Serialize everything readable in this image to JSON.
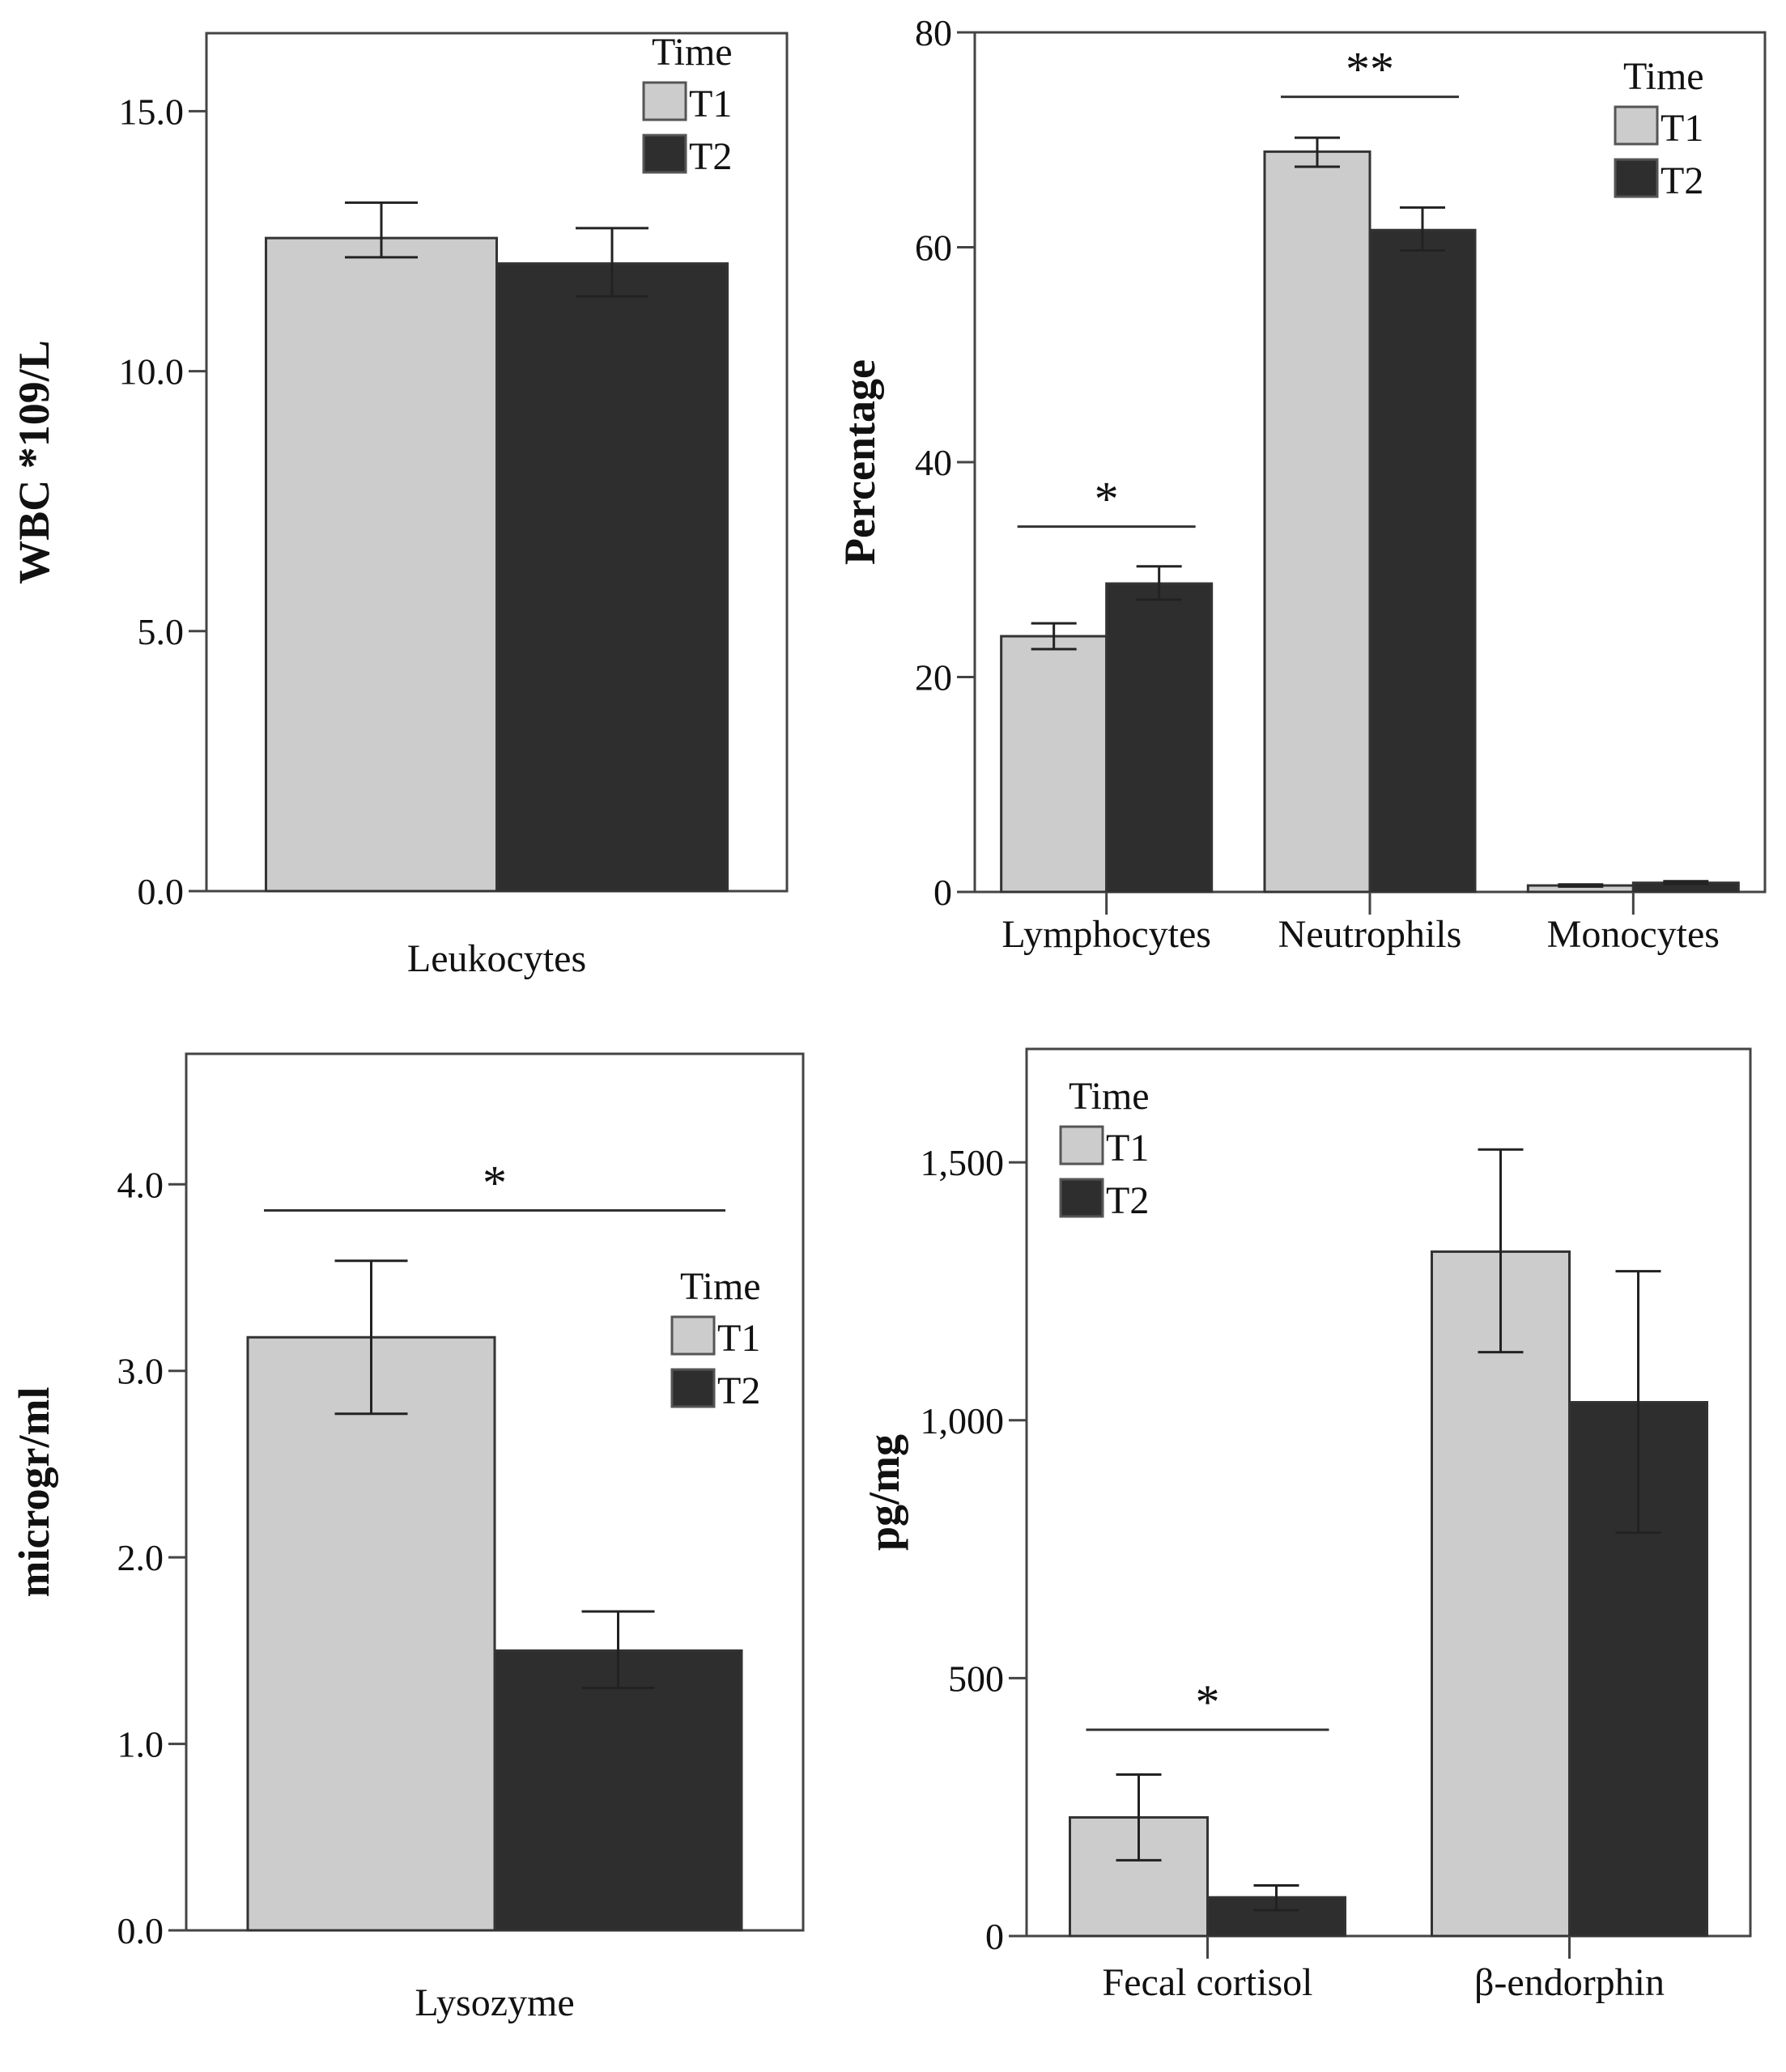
{
  "colors": {
    "T1": "#cccccc",
    "T2": "#2e2e2e",
    "axis": "#444444"
  },
  "legend": {
    "title": "Time",
    "items": [
      "T1",
      "T2"
    ]
  },
  "chart_data": [
    {
      "type": "bar",
      "title": "",
      "xlabel": "Leukocytes",
      "ylabel": "WBC *109/L",
      "ylim": [
        0,
        16.5
      ],
      "yticks": [
        0,
        5,
        10,
        15
      ],
      "ytick_labels": [
        "0.0",
        "5.0",
        "10.0",
        "15.0"
      ],
      "categories": [
        ""
      ],
      "series": [
        {
          "name": "T1",
          "values": [
            12.56
          ],
          "err_low": [
            12.19
          ],
          "err_high": [
            13.24
          ]
        },
        {
          "name": "T2",
          "values": [
            12.07
          ],
          "err_low": [
            11.44
          ],
          "err_high": [
            12.75
          ]
        }
      ],
      "significance": [],
      "legend_position": "top-right"
    },
    {
      "type": "bar",
      "title": "",
      "xlabel": "",
      "ylabel": "Percentage",
      "ylim": [
        0,
        80
      ],
      "yticks": [
        0,
        20,
        40,
        60,
        80
      ],
      "ytick_labels": [
        "0",
        "20",
        "40",
        "60",
        "80"
      ],
      "categories": [
        "Lymphocytes",
        "Neutrophils",
        "Monocytes"
      ],
      "series": [
        {
          "name": "T1",
          "values": [
            23.8,
            68.9,
            0.6
          ],
          "err_low": [
            22.6,
            67.5,
            0.5
          ],
          "err_high": [
            25.0,
            70.2,
            0.7
          ]
        },
        {
          "name": "T2",
          "values": [
            28.7,
            61.6,
            0.85
          ],
          "err_low": [
            27.2,
            59.7,
            0.75
          ],
          "err_high": [
            30.3,
            63.7,
            1.0
          ]
        }
      ],
      "significance": [
        {
          "category": "Lymphocytes",
          "label": "*",
          "y": 34
        },
        {
          "category": "Neutrophils",
          "label": "**",
          "y": 74
        }
      ],
      "legend_position": "top-right"
    },
    {
      "type": "bar",
      "title": "",
      "xlabel": "Lysozyme",
      "ylabel": "microgr/ml",
      "ylim": [
        0,
        4.7
      ],
      "yticks": [
        0,
        1,
        2,
        3,
        4
      ],
      "ytick_labels": [
        "0.0",
        "1.0",
        "2.0",
        "3.0",
        "4.0"
      ],
      "categories": [
        ""
      ],
      "series": [
        {
          "name": "T1",
          "values": [
            3.18
          ],
          "err_low": [
            2.77
          ],
          "err_high": [
            3.59
          ]
        },
        {
          "name": "T2",
          "values": [
            1.5
          ],
          "err_low": [
            1.3
          ],
          "err_high": [
            1.71
          ]
        }
      ],
      "significance": [
        {
          "category": "",
          "label": "*",
          "y": 3.86
        }
      ],
      "legend_position": "right"
    },
    {
      "type": "bar",
      "title": "",
      "xlabel": "",
      "ylabel": "pg/mg",
      "ylim": [
        0,
        1720
      ],
      "yticks": [
        0,
        500,
        1000,
        1500
      ],
      "ytick_labels": [
        "0",
        "500",
        "1,000",
        "1,500"
      ],
      "categories": [
        "Fecal cortisol",
        "β-endorphin"
      ],
      "series": [
        {
          "name": "T1",
          "values": [
            230,
            1327
          ],
          "err_low": [
            147,
            1132
          ],
          "err_high": [
            313,
            1525
          ]
        },
        {
          "name": "T2",
          "values": [
            75,
            1035
          ],
          "err_low": [
            50,
            782
          ],
          "err_high": [
            98,
            1289
          ]
        }
      ],
      "significance": [
        {
          "category": "Fecal cortisol",
          "label": "*",
          "y": 400
        }
      ],
      "legend_position": "top-left"
    }
  ]
}
